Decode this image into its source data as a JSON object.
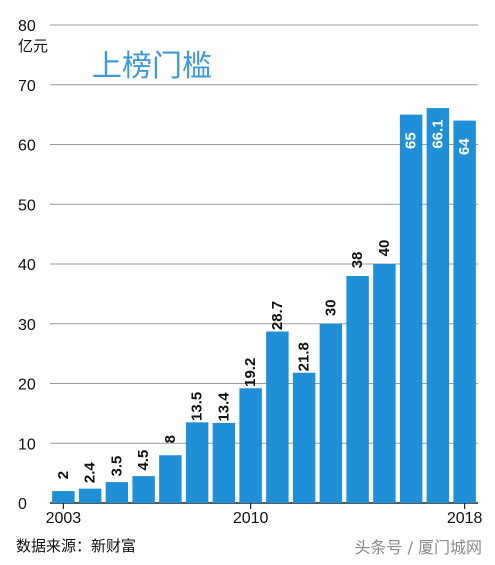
{
  "chart_data": {
    "type": "bar",
    "title": "上榜门槛",
    "ylabel": "亿元",
    "ylim": [
      0,
      80
    ],
    "yticks": [
      0,
      10,
      20,
      30,
      40,
      50,
      60,
      70,
      80
    ],
    "grid": true,
    "categories": [
      "2003",
      "2004",
      "2005",
      "2006",
      "2007",
      "2008",
      "2009",
      "2010",
      "2011",
      "2012",
      "2013",
      "2014",
      "2015",
      "2016",
      "2017",
      "2018"
    ],
    "xtick_labels": [
      "2003",
      "2010",
      "2018"
    ],
    "values": [
      2,
      2.4,
      3.5,
      4.5,
      8,
      13.5,
      13.4,
      19.2,
      28.7,
      21.8,
      30,
      38,
      40,
      65,
      66.1,
      64
    ],
    "value_labels": [
      "2",
      "2.4",
      "3.5",
      "4.5",
      "8",
      "13.5",
      "13.4",
      "19.2",
      "28.7",
      "21.8",
      "30",
      "38",
      "40",
      "65",
      "66.1",
      "64"
    ],
    "bar_color": "#1f8fd8"
  },
  "footer": {
    "source": "数据来源：新财富",
    "watermark": "头条号 / 厦门城网"
  }
}
